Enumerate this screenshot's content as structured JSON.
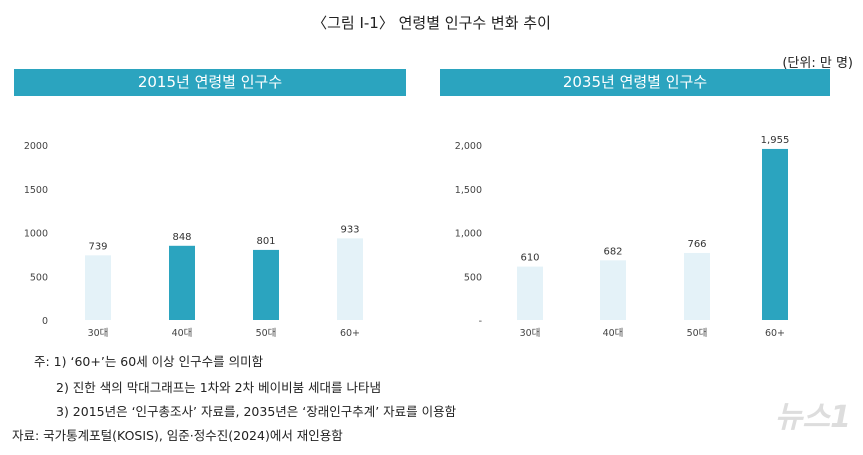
{
  "figure": {
    "title": "〈그림 Ⅰ-1〉 연령별 인구수 변화 추이",
    "unit": "(단위: 만 명)"
  },
  "colors": {
    "dark": "#2ba4bf",
    "light": "#e4f2f8",
    "header": "#2ba4bf"
  },
  "chart_data": [
    {
      "type": "bar",
      "title": "2015년 연령별 인구수",
      "categories": [
        "30대",
        "40대",
        "50대",
        "60+"
      ],
      "values": [
        739,
        848,
        801,
        933
      ],
      "highlight": [
        false,
        true,
        true,
        false
      ],
      "ylim": [
        0,
        2000
      ],
      "yticks": [
        0,
        500,
        1000,
        1500,
        2000
      ],
      "ytick_labels": [
        "0",
        "500",
        "1000",
        "1500",
        "2000"
      ],
      "data_labels": [
        "739",
        "848",
        "801",
        "933"
      ],
      "grid": false
    },
    {
      "type": "bar",
      "title": "2035년 연령별 인구수",
      "categories": [
        "30대",
        "40대",
        "50대",
        "60+"
      ],
      "values": [
        610,
        682,
        766,
        1955
      ],
      "highlight": [
        false,
        false,
        false,
        true
      ],
      "ylim": [
        0,
        2000
      ],
      "yticks": [
        0,
        500,
        1000,
        1500,
        2000
      ],
      "ytick_labels": [
        "-",
        "500",
        "1,000",
        "1,500",
        "2,000"
      ],
      "data_labels": [
        "610",
        "682",
        "766",
        "1,955"
      ],
      "grid": false
    }
  ],
  "notes": [
    "주: 1) ‘60+’는 60세 이상 인구수를 의미함",
    "2) 진한 색의 막대그래프는 1차와 2차 베이비붐 세대를 나타냄",
    "3) 2015년은 ‘인구총조사’ 자료를, 2035년은 ‘장래인구추계’ 자료를 이용함"
  ],
  "source": "자료: 국가통계포털(KOSIS), 임준·정수진(2024)에서 재인용함",
  "watermark": "뉴스1"
}
